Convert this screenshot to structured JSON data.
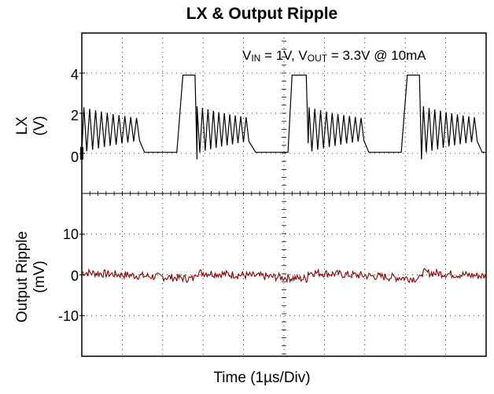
{
  "chart_data": {
    "type": "line",
    "title": "LX & Output Ripple",
    "annotation": {
      "vin": "1V",
      "vout": "3.3V",
      "load": "@ 10mA"
    },
    "xlabel": "Time (1µs/Div)",
    "x_divisions": 10,
    "panels": [
      {
        "ylabel_line1": "LX",
        "ylabel_line2": "(V)",
        "ylim": [
          -2,
          6
        ],
        "yticks": [
          "4",
          "2",
          "0"
        ],
        "series": [
          {
            "color": "#000000",
            "description_free_points": [
              [
                0.0,
                2.1
              ],
              [
                1.5,
                0.0
              ],
              [
                2.3,
                0.0
              ],
              [
                2.45,
                3.9
              ],
              [
                2.75,
                3.9
              ],
              [
                2.8,
                0.6
              ],
              [
                4.3,
                0.0
              ],
              [
                5.1,
                0.0
              ],
              [
                5.25,
                3.9
              ],
              [
                5.55,
                3.9
              ],
              [
                5.6,
                0.6
              ],
              [
                7.1,
                0.0
              ],
              [
                7.9,
                0.0
              ],
              [
                8.05,
                3.9
              ],
              [
                8.35,
                3.9
              ],
              [
                8.4,
                0.6
              ],
              [
                9.95,
                0.0
              ]
            ]
          }
        ]
      },
      {
        "ylabel_line1": "Output Ripple",
        "ylabel_line2": "(mV)",
        "ylim": [
          -20,
          20
        ],
        "yticks": [
          "10",
          "0",
          "-10"
        ],
        "series": [
          {
            "color": "#8b0000",
            "baseline_mV": 0,
            "ripple_pp_mV": 2
          }
        ]
      }
    ]
  }
}
